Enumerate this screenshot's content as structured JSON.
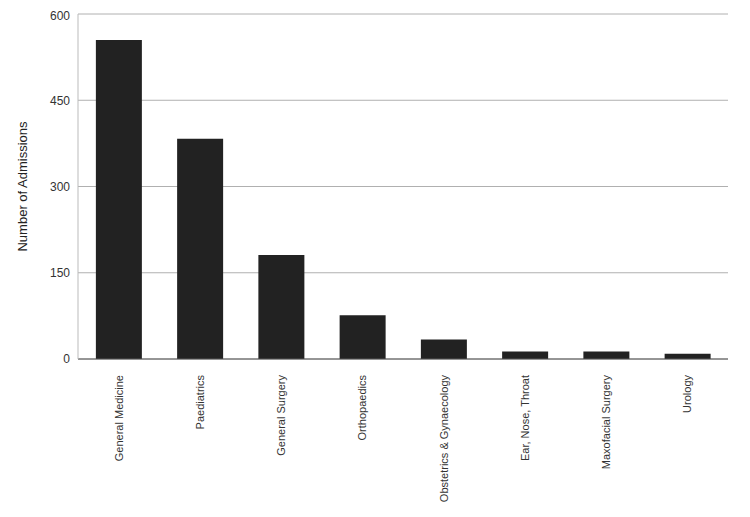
{
  "chart_data": {
    "type": "bar",
    "y_label": "Number of Admissions",
    "categories": [
      "General Medicine",
      "Paediatrics",
      "General Surgery",
      "Orthopaedics",
      "Obstetrics & Gynaecology",
      "Ear, Nose, Throat",
      "Maxofacial Surgery",
      "Urology"
    ],
    "values": [
      555,
      383,
      181,
      76,
      34,
      13,
      13,
      9
    ],
    "color": "#222222",
    "ylim": [
      0,
      600
    ],
    "yticks": [
      0,
      150,
      300,
      450,
      600
    ],
    "grid": true
  }
}
